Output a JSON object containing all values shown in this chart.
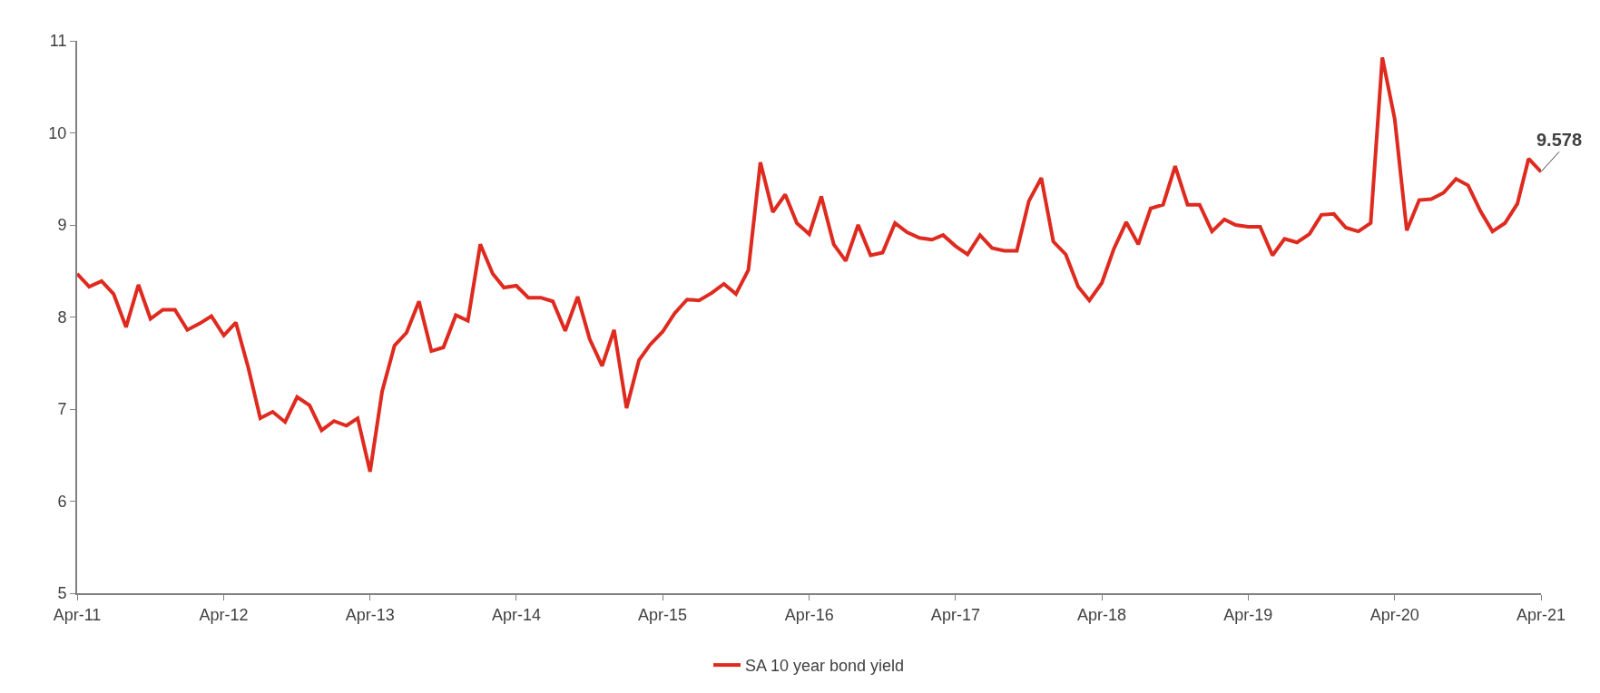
{
  "chart_data": {
    "type": "line",
    "x": [
      "2011-04",
      "2011-05",
      "2011-06",
      "2011-07",
      "2011-08",
      "2011-09",
      "2011-10",
      "2011-11",
      "2011-12",
      "2012-01",
      "2012-02",
      "2012-03",
      "2012-04",
      "2012-05",
      "2012-06",
      "2012-07",
      "2012-08",
      "2012-09",
      "2012-10",
      "2012-11",
      "2012-12",
      "2013-01",
      "2013-02",
      "2013-03",
      "2013-04",
      "2013-05",
      "2013-06",
      "2013-07",
      "2013-08",
      "2013-09",
      "2013-10",
      "2013-11",
      "2013-12",
      "2014-01",
      "2014-02",
      "2014-03",
      "2014-04",
      "2014-05",
      "2014-06",
      "2014-07",
      "2014-08",
      "2014-09",
      "2014-10",
      "2014-11",
      "2014-12",
      "2015-01",
      "2015-02",
      "2015-03",
      "2015-04",
      "2015-05",
      "2015-06",
      "2015-07",
      "2015-08",
      "2015-09",
      "2015-10",
      "2015-11",
      "2015-12",
      "2016-01",
      "2016-02",
      "2016-03",
      "2016-04",
      "2016-05",
      "2016-06",
      "2016-07",
      "2016-08",
      "2016-09",
      "2016-10",
      "2016-11",
      "2016-12",
      "2017-01",
      "2017-02",
      "2017-03",
      "2017-04",
      "2017-05",
      "2017-06",
      "2017-07",
      "2017-08",
      "2017-09",
      "2017-10",
      "2017-11",
      "2017-12",
      "2018-01",
      "2018-02",
      "2018-03",
      "2018-04",
      "2018-05",
      "2018-06",
      "2018-07",
      "2018-08",
      "2018-09",
      "2018-10",
      "2018-11",
      "2018-12",
      "2019-01",
      "2019-02",
      "2019-03",
      "2019-04",
      "2019-05",
      "2019-06",
      "2019-07",
      "2019-08",
      "2019-09",
      "2019-10",
      "2019-11",
      "2019-12",
      "2020-01",
      "2020-02",
      "2020-03",
      "2020-04",
      "2020-05",
      "2020-06",
      "2020-07",
      "2020-08",
      "2020-09",
      "2020-10",
      "2020-11",
      "2020-12",
      "2021-01",
      "2021-02",
      "2021-03",
      "2021-04"
    ],
    "series": [
      {
        "name": "SA 10 year bond yield",
        "color": "#de2a1f",
        "values": [
          8.47,
          8.33,
          8.39,
          8.25,
          7.89,
          8.35,
          7.98,
          8.08,
          8.08,
          7.86,
          7.93,
          8.01,
          7.8,
          7.94,
          7.45,
          6.9,
          6.97,
          6.86,
          7.13,
          7.04,
          6.77,
          6.87,
          6.82,
          6.9,
          6.32,
          7.19,
          7.69,
          7.83,
          8.17,
          7.63,
          7.67,
          8.02,
          7.96,
          8.79,
          8.47,
          8.32,
          8.34,
          8.21,
          8.21,
          8.17,
          7.85,
          8.22,
          7.76,
          7.47,
          7.86,
          7.01,
          7.53,
          7.7,
          7.84,
          8.04,
          8.19,
          8.18,
          8.26,
          8.36,
          8.25,
          8.51,
          9.68,
          9.14,
          9.33,
          9.02,
          8.9,
          9.31,
          8.79,
          8.61,
          9.0,
          8.67,
          8.7,
          9.02,
          8.92,
          8.86,
          8.84,
          8.89,
          8.77,
          8.68,
          8.89,
          8.75,
          8.72,
          8.72,
          9.26,
          9.51,
          8.82,
          8.68,
          8.33,
          8.18,
          8.37,
          8.74,
          9.03,
          8.79,
          9.18,
          9.22,
          9.64,
          9.22,
          9.22,
          8.93,
          9.06,
          9.0,
          8.98,
          8.98,
          8.67,
          8.85,
          8.81,
          8.9,
          9.11,
          9.12,
          8.97,
          8.93,
          9.02,
          10.82,
          10.15,
          8.94,
          9.27,
          9.28,
          9.35,
          9.5,
          9.43,
          9.15,
          8.93,
          9.02,
          9.23,
          9.72,
          9.578
        ]
      }
    ],
    "xlim": [
      "2011-04",
      "2021-04"
    ],
    "xticks": [
      {
        "value": "2011-04",
        "label": "Apr-11"
      },
      {
        "value": "2012-04",
        "label": "Apr-12"
      },
      {
        "value": "2013-04",
        "label": "Apr-13"
      },
      {
        "value": "2014-04",
        "label": "Apr-14"
      },
      {
        "value": "2015-04",
        "label": "Apr-15"
      },
      {
        "value": "2016-04",
        "label": "Apr-16"
      },
      {
        "value": "2017-04",
        "label": "Apr-17"
      },
      {
        "value": "2018-04",
        "label": "Apr-18"
      },
      {
        "value": "2019-04",
        "label": "Apr-19"
      },
      {
        "value": "2020-04",
        "label": "Apr-20"
      },
      {
        "value": "2021-04",
        "label": "Apr-21"
      }
    ],
    "ylim": [
      5,
      11
    ],
    "yticks": [
      5,
      6,
      7,
      8,
      9,
      10,
      11
    ],
    "annotations": [
      {
        "text": "9.578",
        "x": "2021-04",
        "y": 9.578
      }
    ],
    "legend": "bottom",
    "marker": "none",
    "line_style": "solid"
  }
}
